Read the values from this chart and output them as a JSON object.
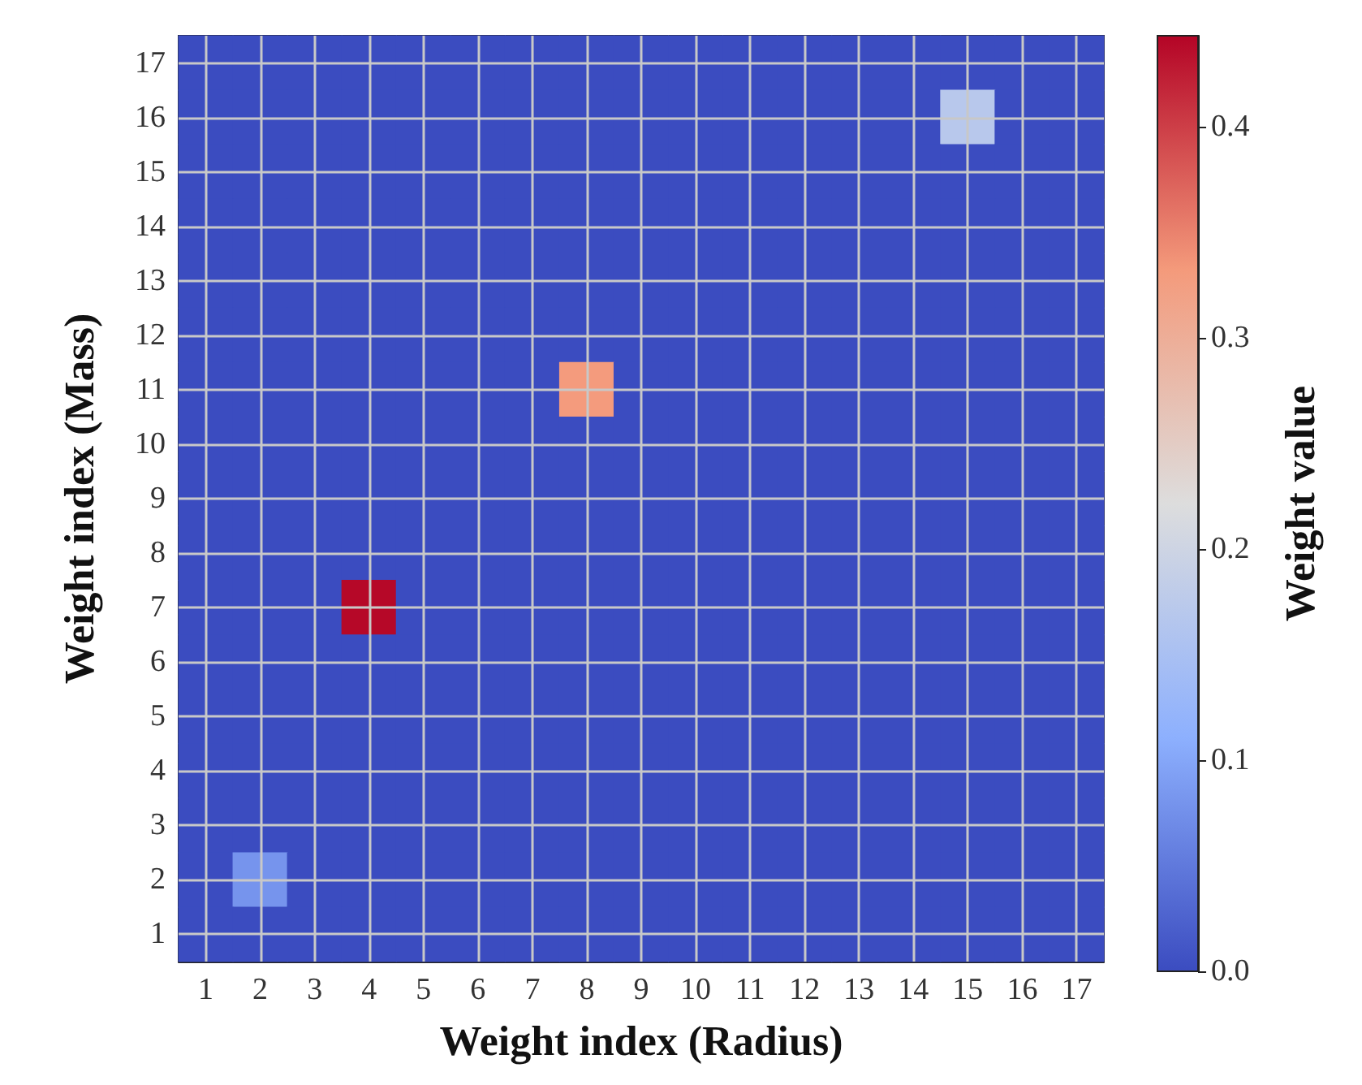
{
  "chart_data": {
    "type": "heatmap",
    "xlabel": "Weight index (Radius)",
    "ylabel": "Weight index (Mass)",
    "clabel": "Weight value",
    "categories": [
      "1",
      "2",
      "3",
      "4",
      "5",
      "6",
      "7",
      "8",
      "9",
      "10",
      "11",
      "12",
      "13",
      "14",
      "15",
      "16",
      "17"
    ],
    "y_categories": [
      "17",
      "16",
      "15",
      "14",
      "13",
      "12",
      "11",
      "10",
      "9",
      "8",
      "7",
      "6",
      "5",
      "4",
      "3",
      "2",
      "1"
    ],
    "cells": [
      [
        0,
        0,
        0,
        0,
        0,
        0,
        0,
        0,
        0,
        0,
        0,
        0,
        0,
        0,
        0,
        0,
        0
      ],
      [
        0,
        0,
        0,
        0,
        0,
        0,
        0,
        0,
        0,
        0,
        0,
        0,
        0,
        0,
        0.17,
        0,
        0
      ],
      [
        0,
        0,
        0,
        0,
        0,
        0,
        0,
        0,
        0,
        0,
        0,
        0,
        0,
        0,
        0,
        0,
        0
      ],
      [
        0,
        0,
        0,
        0,
        0,
        0,
        0,
        0,
        0,
        0,
        0,
        0,
        0,
        0,
        0,
        0,
        0
      ],
      [
        0,
        0,
        0,
        0,
        0,
        0,
        0,
        0,
        0,
        0,
        0,
        0,
        0,
        0,
        0,
        0,
        0
      ],
      [
        0,
        0,
        0,
        0,
        0,
        0,
        0,
        0,
        0,
        0,
        0,
        0,
        0,
        0,
        0,
        0,
        0
      ],
      [
        0,
        0,
        0,
        0,
        0,
        0,
        0,
        0.33,
        0,
        0,
        0,
        0,
        0,
        0,
        0,
        0,
        0
      ],
      [
        0,
        0,
        0,
        0,
        0,
        0,
        0,
        0,
        0,
        0,
        0,
        0,
        0,
        0,
        0,
        0,
        0
      ],
      [
        0,
        0,
        0,
        0,
        0,
        0,
        0,
        0,
        0,
        0,
        0,
        0,
        0,
        0,
        0,
        0,
        0
      ],
      [
        0,
        0,
        0,
        0,
        0,
        0,
        0,
        0,
        0,
        0,
        0,
        0,
        0,
        0,
        0,
        0,
        0
      ],
      [
        0,
        0,
        0,
        0.44,
        0,
        0,
        0,
        0,
        0,
        0,
        0,
        0,
        0,
        0,
        0,
        0,
        0
      ],
      [
        0,
        0,
        0,
        0,
        0,
        0,
        0,
        0,
        0,
        0,
        0,
        0,
        0,
        0,
        0,
        0,
        0
      ],
      [
        0,
        0,
        0,
        0,
        0,
        0,
        0,
        0,
        0,
        0,
        0,
        0,
        0,
        0,
        0,
        0,
        0
      ],
      [
        0,
        0,
        0,
        0,
        0,
        0,
        0,
        0,
        0,
        0,
        0,
        0,
        0,
        0,
        0,
        0,
        0
      ],
      [
        0,
        0,
        0,
        0,
        0,
        0,
        0,
        0,
        0,
        0,
        0,
        0,
        0,
        0,
        0,
        0,
        0
      ],
      [
        0,
        0.08,
        0,
        0,
        0,
        0,
        0,
        0,
        0,
        0,
        0,
        0,
        0,
        0,
        0,
        0,
        0
      ],
      [
        0,
        0,
        0,
        0,
        0,
        0,
        0,
        0,
        0,
        0,
        0,
        0,
        0,
        0,
        0,
        0,
        0
      ]
    ],
    "clim": [
      0,
      0.443
    ],
    "cticks": [
      {
        "value": 0,
        "label": "0.0"
      },
      0.1,
      0.2,
      0.3,
      0.4
    ],
    "grid": true
  }
}
